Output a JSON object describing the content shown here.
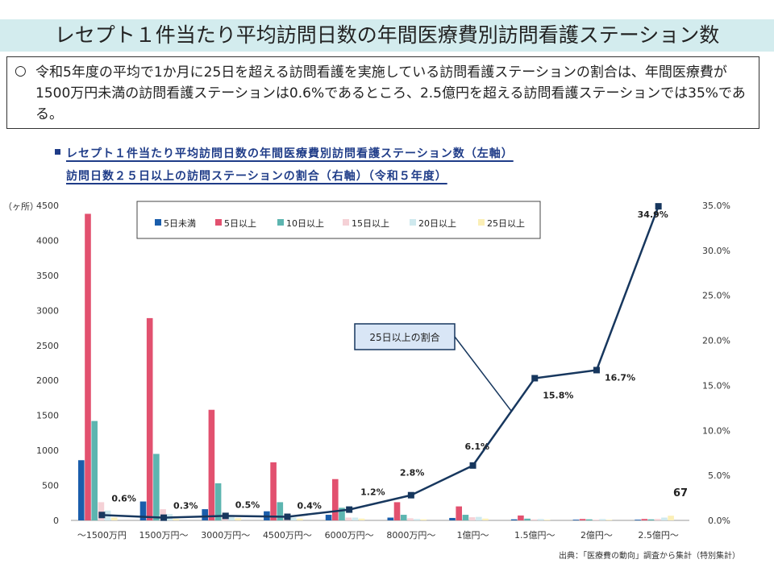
{
  "page": {
    "title": "レセプト１件当たり平均訪問日数の年間医療費別訪問看護ステーション数",
    "summary_bullet": "○",
    "summary": "令和5年度の平均で1か月に25日を超える訪問看護を実施している訪問看護ステーションの割合は、年間医療費が1500万円未満の訪問看護ステーションは0.6%であるところ、2.5億円を超える訪問看護ステーションでは35%である。",
    "subtitle_line1": "レセプト１件当たり平均訪問日数の年間医療費別訪問看護ステーション数（左軸）",
    "subtitle_line2": "訪問日数２５日以上の訪問ステーションの割合（右軸）（令和５年度）",
    "source": "出典：「医療費の動向」調査から集計（特別集計）"
  },
  "chart_data": {
    "type": "bar",
    "categories": [
      "～1500万円",
      "1500万円～",
      "3000万円～",
      "4500万円～",
      "6000万円～",
      "8000万円～",
      "1億円～",
      "1.5億円～",
      "2億円～",
      "2.5億円～"
    ],
    "left_axis": {
      "label": "（ヶ所）",
      "ylim": [
        0,
        4500
      ],
      "ticks": [
        "0",
        "500",
        "1000",
        "1500",
        "2000",
        "2500",
        "3000",
        "3500",
        "4000",
        "4500"
      ]
    },
    "right_axis": {
      "ylim": [
        0,
        35
      ],
      "ticks": [
        "0.0%",
        "5.0%",
        "10.0%",
        "15.0%",
        "20.0%",
        "25.0%",
        "30.0%",
        "35.0%"
      ]
    },
    "series": [
      {
        "name": "5日未満",
        "color": "#1a5dab",
        "values": [
          860,
          270,
          160,
          130,
          80,
          40,
          35,
          15,
          10,
          10
        ]
      },
      {
        "name": "5日以上",
        "color": "#e2516f",
        "values": [
          4380,
          2890,
          1580,
          830,
          590,
          260,
          200,
          70,
          20,
          20
        ]
      },
      {
        "name": "10日以上",
        "color": "#5db5b0",
        "values": [
          1420,
          950,
          530,
          260,
          180,
          80,
          80,
          25,
          15,
          15
        ]
      },
      {
        "name": "15日以上",
        "color": "#f5d1d6",
        "values": [
          260,
          160,
          90,
          60,
          40,
          30,
          45,
          15,
          10,
          20
        ]
      },
      {
        "name": "20日以上",
        "color": "#cfe9ee",
        "values": [
          140,
          90,
          50,
          40,
          40,
          20,
          50,
          20,
          20,
          40
        ]
      },
      {
        "name": "25日以上",
        "color": "#fbefb6",
        "values": [
          40,
          20,
          30,
          25,
          25,
          15,
          25,
          10,
          10,
          67
        ]
      }
    ],
    "line": {
      "color": "#17375e",
      "values": [
        0.6,
        0.3,
        0.5,
        0.4,
        1.2,
        2.8,
        6.1,
        15.8,
        16.7,
        34.9
      ],
      "labels": [
        "0.6%",
        "0.3%",
        "0.5%",
        "0.4%",
        "1.2%",
        "2.8%",
        "6.1%",
        "15.8%",
        "16.7%",
        "34.9%"
      ]
    },
    "callout": "25日以上の割合",
    "annotation": "67",
    "grid": false,
    "legend": "top-left"
  }
}
